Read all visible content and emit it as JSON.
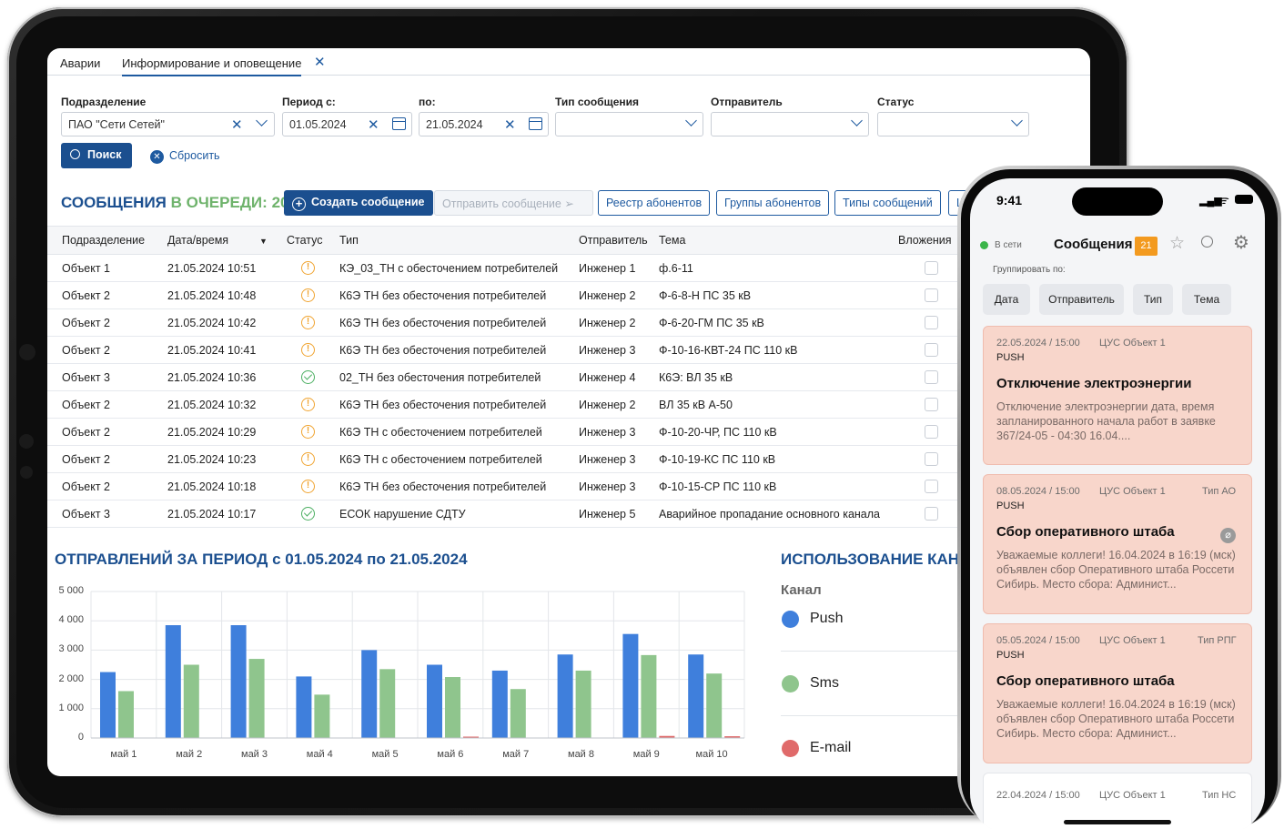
{
  "tabs": [
    {
      "label": "Аварии"
    },
    {
      "label": "Информирование и оповещение"
    }
  ],
  "filters": {
    "division": {
      "label": "Подразделение",
      "value": "ПАО \"Сети Сетей\""
    },
    "period_from": {
      "label": "Период с:",
      "value": "01.05.2024"
    },
    "period_to": {
      "label": "по:",
      "value": "21.05.2024"
    },
    "msg_type": {
      "label": "Тип сообщения",
      "value": ""
    },
    "sender": {
      "label": "Отправитель",
      "value": ""
    },
    "status": {
      "label": "Статус",
      "value": ""
    },
    "search_btn": "Поиск",
    "reset_btn": "Сбросить"
  },
  "queue": {
    "title": "СООБЩЕНИЯ",
    "subtitle": "В ОЧЕРЕДИ:",
    "count": "20",
    "actions": {
      "create": "Создать сообщение",
      "send": "Отправить сообщение",
      "registry": "Реестр абонентов",
      "groups": "Группы абонентов",
      "types": "Типы сообщений",
      "cut": "Ш"
    }
  },
  "table": {
    "headers": [
      "Подразделение",
      "Дата/время",
      "Статус",
      "Тип",
      "Отправитель",
      "Тема",
      "Вложения"
    ],
    "rows": [
      {
        "div": "Объект 1",
        "dt": "21.05.2024 10:51",
        "status": "warn",
        "type": "КЭ_03_ТН с обесточением потребителей",
        "sender": "Инженер 1",
        "topic": "ф.6-11"
      },
      {
        "div": "Объект 2",
        "dt": "21.05.2024 10:48",
        "status": "warn",
        "type": "К6Э ТН без обесточения потребителей",
        "sender": "Инженер 2",
        "topic": "Ф-6-8-Н ПС 35 кВ"
      },
      {
        "div": "Объект 2",
        "dt": "21.05.2024 10:42",
        "status": "warn",
        "type": "К6Э ТН без обесточения потребителей",
        "sender": "Инженер 2",
        "topic": "Ф-6-20-ГМ ПС 35 кВ"
      },
      {
        "div": "Объект 2",
        "dt": "21.05.2024 10:41",
        "status": "warn",
        "type": "К6Э ТН без обесточения потребителей",
        "sender": "Инженер 3",
        "topic": "Ф-10-16-КВТ-24 ПС 110 кВ"
      },
      {
        "div": "Объект 3",
        "dt": "21.05.2024 10:36",
        "status": "ok",
        "type": "02_ТН без обесточения потребителей",
        "sender": "Инженер 4",
        "topic": "К6Э: ВЛ 35 кВ"
      },
      {
        "div": "Объект 2",
        "dt": "21.05.2024 10:32",
        "status": "warn",
        "type": "К6Э ТН без обесточения потребителей",
        "sender": "Инженер 2",
        "topic": "ВЛ 35 кВ А-50"
      },
      {
        "div": "Объект 2",
        "dt": "21.05.2024 10:29",
        "status": "warn",
        "type": "К6Э ТН с обесточением потребителей",
        "sender": "Инженер 3",
        "topic": "Ф-10-20-ЧР, ПС 110 кВ"
      },
      {
        "div": "Объект 2",
        "dt": "21.05.2024 10:23",
        "status": "warn",
        "type": "К6Э ТН с обесточением потребителей",
        "sender": "Инженер 3",
        "topic": "Ф-10-19-КС ПС 110 кВ"
      },
      {
        "div": "Объект 2",
        "dt": "21.05.2024 10:18",
        "status": "warn",
        "type": "К6Э ТН без обесточения потребителей",
        "sender": "Инженер 3",
        "topic": "Ф-10-15-СР ПС 110 кВ"
      },
      {
        "div": "Объект 3",
        "dt": "21.05.2024 10:17",
        "status": "ok",
        "type": "ЕСОК нарушение СДТУ",
        "sender": "Инженер 5",
        "topic": "Аварийное пропадание основного канала"
      }
    ]
  },
  "sent_title": "ОТПРАВЛЕНИЙ ЗА ПЕРИОД с 01.05.2024 по 21.05.2024",
  "chart_data": {
    "type": "bar",
    "categories": [
      "май 1",
      "май 2",
      "май 3",
      "май 4",
      "май 5",
      "май 6",
      "май 7",
      "май 8",
      "май 9",
      "май 10"
    ],
    "series": [
      {
        "name": "Push",
        "color": "#3f7fdc",
        "values": [
          2250,
          3850,
          3850,
          2100,
          3000,
          2500,
          2300,
          2850,
          3550,
          2850
        ]
      },
      {
        "name": "Sms",
        "color": "#8fc58d",
        "values": [
          1600,
          2500,
          2700,
          1480,
          2350,
          2080,
          1670,
          2300,
          2830,
          2200
        ]
      },
      {
        "name": "E-mail",
        "color": "#e06a6a",
        "values": [
          0,
          0,
          0,
          0,
          0,
          20,
          0,
          0,
          70,
          60
        ]
      }
    ],
    "ylim": [
      0,
      5000
    ],
    "yticks": [
      "5 000",
      "4 000",
      "3 000",
      "2 000",
      "1 000",
      "0"
    ],
    "grid": true
  },
  "usage": {
    "title": "ИСПОЛЬЗОВАНИЕ КАН",
    "channel_label": "Канал",
    "legend": [
      {
        "name": "Push",
        "color": "#3f7fdc"
      },
      {
        "name": "Sms",
        "color": "#8fc58d"
      },
      {
        "name": "E-mail",
        "color": "#e06a6a"
      }
    ]
  },
  "phone": {
    "time": "9:41",
    "online": "В сети",
    "title": "Сообщения",
    "badge": "21",
    "group_by": "Группировать по:",
    "groups": [
      "Дата",
      "Отправитель",
      "Тип",
      "Тема"
    ],
    "cards": [
      {
        "date": "22.05.2024 / 15:00",
        "org": "ЦУС Объект 1",
        "kind": "",
        "channel": "PUSH",
        "title": "Отключение электроэнергии",
        "body": "Отключение электроэнергии дата, время запланированного начала работ в заявке 367/24-05 - 04:30 16.04...."
      },
      {
        "date": "08.05.2024 / 15:00",
        "org": "ЦУС Объект 1",
        "kind": "Тип АО",
        "channel": "PUSH",
        "title": "Сбор оперативного штаба",
        "body": "Уважаемые коллеги! 16.04.2024 в 16:19 (мск) объявлен сбор Оперативного штаба Россети Сибирь. Место сбора: Админист..."
      },
      {
        "date": "05.05.2024 / 15:00",
        "org": "ЦУС Объект 1",
        "kind": "Тип РПГ",
        "channel": "PUSH",
        "title": "Сбор оперативного штаба",
        "body": "Уважаемые коллеги! 16.04.2024 в 16:19 (мск) объявлен сбор Оперативного штаба Россети Сибирь. Место сбора: Админист..."
      },
      {
        "date": "22.04.2024 / 15:00",
        "org": "ЦУС Объект 1",
        "kind": "Тип НС",
        "channel": "",
        "title": "",
        "body": ""
      }
    ]
  }
}
